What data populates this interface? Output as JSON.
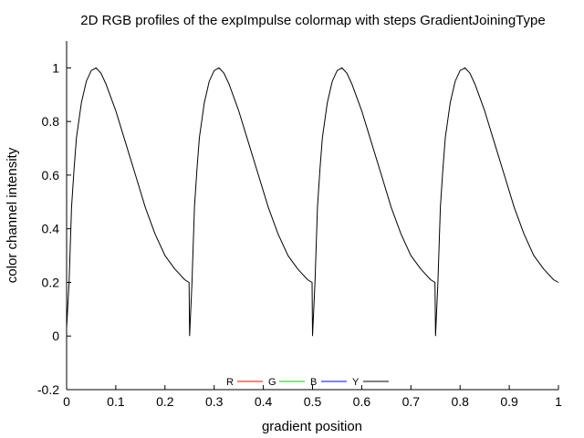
{
  "chart_data": {
    "type": "line",
    "title": "2D RGB profiles of the expImpulse colormap with steps GradientJoiningType",
    "xlabel": "gradient position",
    "ylabel": "color channel intensity",
    "xlim": [
      0,
      1
    ],
    "ylim": [
      -0.2,
      1.1
    ],
    "xticks": [
      "0",
      "0.1",
      "0.2",
      "0.3",
      "0.4",
      "0.5",
      "0.6",
      "0.7",
      "0.8",
      "0.9",
      "1"
    ],
    "yticks": [
      "-0.2",
      "0",
      "0.2",
      "0.4",
      "0.6",
      "0.8",
      "1"
    ],
    "grid": false,
    "legend_position": "bottom-center",
    "series": [
      {
        "name": "R",
        "color": "#ff0000",
        "x": [],
        "y": []
      },
      {
        "name": "G",
        "color": "#00cc00",
        "x": [],
        "y": []
      },
      {
        "name": "B",
        "color": "#0000ff",
        "x": [],
        "y": []
      },
      {
        "name": "Y",
        "color": "#000000",
        "x": [
          0,
          0.005,
          0.01,
          0.015,
          0.02,
          0.03,
          0.04,
          0.05,
          0.06,
          0.07,
          0.08,
          0.09,
          0.1,
          0.12,
          0.14,
          0.16,
          0.18,
          0.2,
          0.22,
          0.24,
          0.249,
          0.25,
          0.255,
          0.26,
          0.265,
          0.27,
          0.28,
          0.29,
          0.3,
          0.31,
          0.32,
          0.33,
          0.34,
          0.35,
          0.37,
          0.39,
          0.41,
          0.43,
          0.45,
          0.47,
          0.49,
          0.499,
          0.5,
          0.505,
          0.51,
          0.515,
          0.52,
          0.53,
          0.54,
          0.55,
          0.56,
          0.57,
          0.58,
          0.59,
          0.6,
          0.62,
          0.64,
          0.66,
          0.68,
          0.7,
          0.72,
          0.74,
          0.749,
          0.75,
          0.755,
          0.76,
          0.765,
          0.77,
          0.78,
          0.79,
          0.8,
          0.81,
          0.82,
          0.83,
          0.84,
          0.85,
          0.87,
          0.89,
          0.91,
          0.93,
          0.95,
          0.97,
          0.99,
          1.0
        ],
        "y": [
          0.03,
          0.2,
          0.48,
          0.62,
          0.74,
          0.87,
          0.95,
          0.99,
          1.0,
          0.98,
          0.94,
          0.89,
          0.84,
          0.72,
          0.6,
          0.48,
          0.38,
          0.3,
          0.25,
          0.21,
          0.2,
          0.0,
          0.2,
          0.48,
          0.62,
          0.74,
          0.87,
          0.95,
          0.99,
          1.0,
          0.98,
          0.94,
          0.89,
          0.84,
          0.72,
          0.6,
          0.48,
          0.38,
          0.3,
          0.25,
          0.21,
          0.2,
          0.0,
          0.2,
          0.48,
          0.62,
          0.74,
          0.87,
          0.95,
          0.99,
          1.0,
          0.98,
          0.94,
          0.89,
          0.84,
          0.72,
          0.6,
          0.48,
          0.38,
          0.3,
          0.25,
          0.21,
          0.2,
          0.0,
          0.2,
          0.48,
          0.62,
          0.74,
          0.87,
          0.95,
          0.99,
          1.0,
          0.98,
          0.94,
          0.89,
          0.84,
          0.72,
          0.6,
          0.48,
          0.38,
          0.3,
          0.25,
          0.21,
          0.2
        ]
      }
    ]
  }
}
